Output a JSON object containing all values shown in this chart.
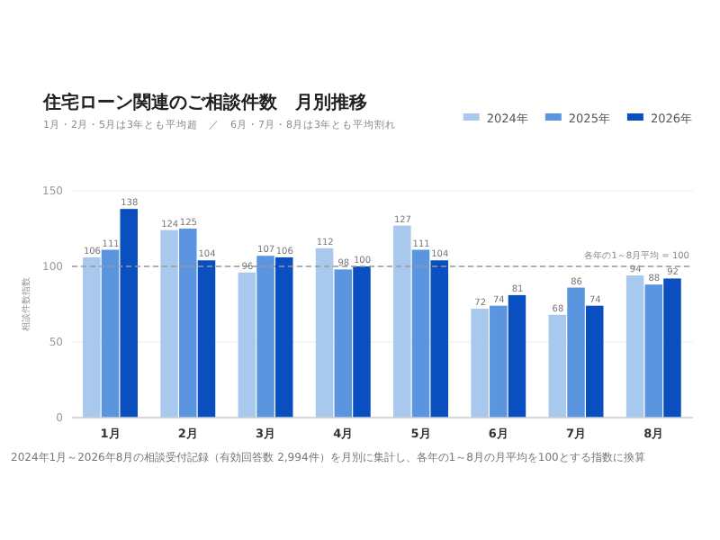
{
  "chart_data": {
    "type": "bar",
    "title": "住宅ローン関連のご相談件数　月別推移",
    "subtitle": "1月・2月・5月は3年とも平均超　／　6月・7月・8月は3年とも平均割れ",
    "ylabel": "相談件数指数",
    "categories": [
      "1月",
      "2月",
      "3月",
      "4月",
      "5月",
      "6月",
      "7月",
      "8月"
    ],
    "series": [
      {
        "name": "2024年",
        "color": "#a8c8ee",
        "values": [
          106,
          124,
          96,
          112,
          127,
          72,
          68,
          94
        ]
      },
      {
        "name": "2025年",
        "color": "#5b95e0",
        "values": [
          111,
          125,
          107,
          98,
          111,
          74,
          86,
          88
        ]
      },
      {
        "name": "2026年",
        "color": "#0a4fbf",
        "values": [
          138,
          104,
          106,
          100,
          104,
          81,
          74,
          92
        ]
      }
    ],
    "ylim": [
      0,
      150
    ],
    "yticks": [
      0,
      50,
      100,
      150
    ],
    "grid": "y",
    "legend": "top right",
    "data_labels": true,
    "ref_lines": [
      {
        "axis": "y",
        "value": 100,
        "label": "各年の1～8月平均 = 100",
        "color": "#999999",
        "line_style": "dashed"
      }
    ],
    "annotations": [
      "2024年1月～2026年8月の相談受付記録（有効回答数 2,994件）を月別に集計し、各年の1～8月の月平均を100とする指数に換算"
    ]
  }
}
